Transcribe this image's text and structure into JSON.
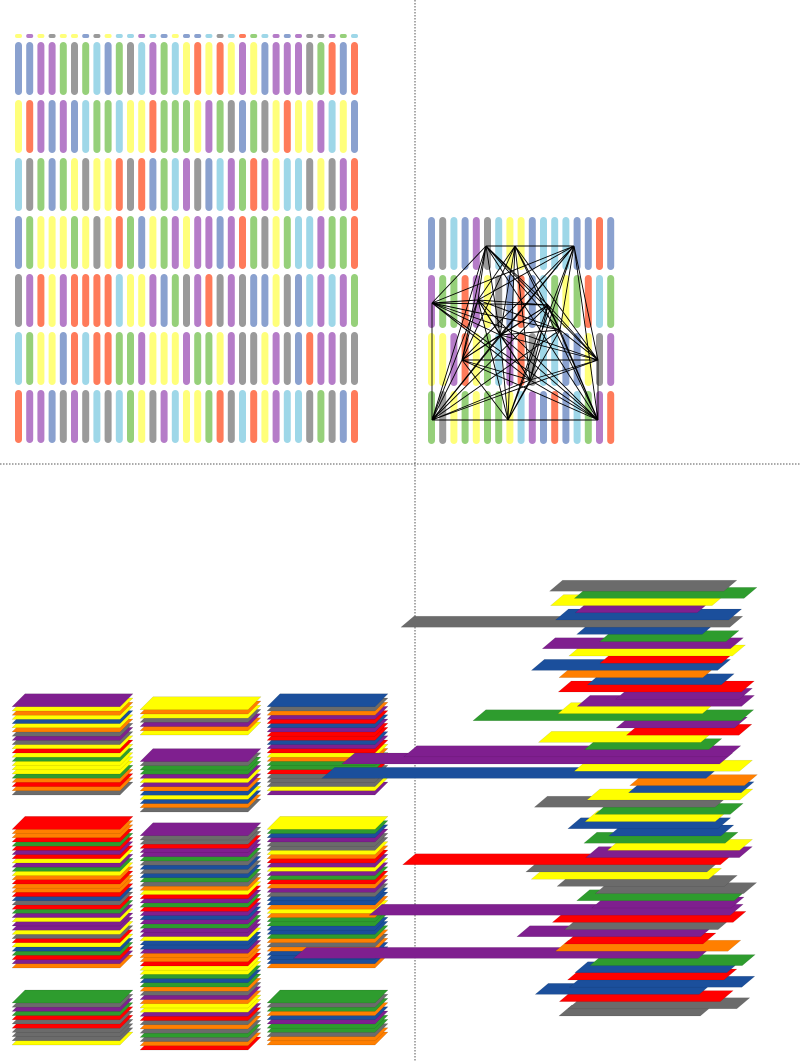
{
  "palette": {
    "pastel": [
      "#ff7b5a",
      "#8aa1cf",
      "#b57cc8",
      "#96d07a",
      "#ffff7a",
      "#9ed7e8",
      "#9a9a9a"
    ],
    "stack": [
      "#ff0000",
      "#1b4f9c",
      "#ff7f00",
      "#ffff00",
      "#2e9c2e",
      "#7f1f8f",
      "#6b6b6b"
    ],
    "divider": "#555555",
    "lines": "#000000"
  },
  "panels": [
    {
      "id": "pill-grid",
      "rows": 7,
      "columns": 31
    },
    {
      "id": "pill-network",
      "rows": 4,
      "columns": 17,
      "nodes": 14
    },
    {
      "id": "tile-stacks",
      "stacks": 8
    },
    {
      "id": "shifted-layers",
      "layers": 60
    }
  ]
}
